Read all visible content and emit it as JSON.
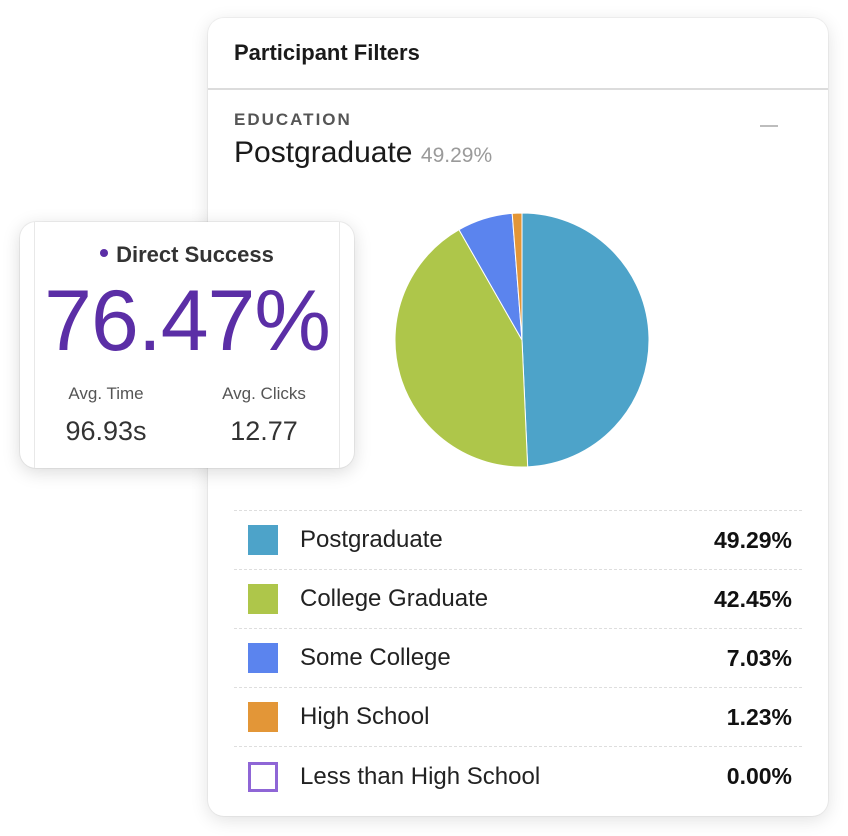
{
  "panel": {
    "title": "Participant Filters",
    "section_label": "EDUCATION",
    "selected": {
      "name": "Postgraduate",
      "pct": "49.29%"
    },
    "legend": [
      {
        "label": "Postgraduate",
        "value": "49.29%",
        "color": "#4da3c9",
        "hollow": false
      },
      {
        "label": "College Graduate",
        "value": "42.45%",
        "color": "#aec64a",
        "hollow": false
      },
      {
        "label": "Some College",
        "value": "7.03%",
        "color": "#5b84ee",
        "hollow": false
      },
      {
        "label": "High School",
        "value": "1.23%",
        "color": "#e39637",
        "hollow": false
      },
      {
        "label": "Less than High School",
        "value": "0.00%",
        "color": "#8f66d6",
        "hollow": true
      }
    ]
  },
  "chart_data": {
    "type": "pie",
    "categories": [
      "Postgraduate",
      "College Graduate",
      "Some College",
      "High School",
      "Less than High School"
    ],
    "values": [
      49.29,
      42.45,
      7.03,
      1.23,
      0.0
    ],
    "colors": [
      "#4da3c9",
      "#aec64a",
      "#5b84ee",
      "#e39637",
      "#8f66d6"
    ]
  },
  "card": {
    "title": "Direct Success",
    "big_value": "76.47%",
    "avg_time_label": "Avg. Time",
    "avg_time_value": "96.93s",
    "avg_clicks_label": "Avg. Clicks",
    "avg_clicks_value": "12.77",
    "accent": "#5b2ea6"
  }
}
